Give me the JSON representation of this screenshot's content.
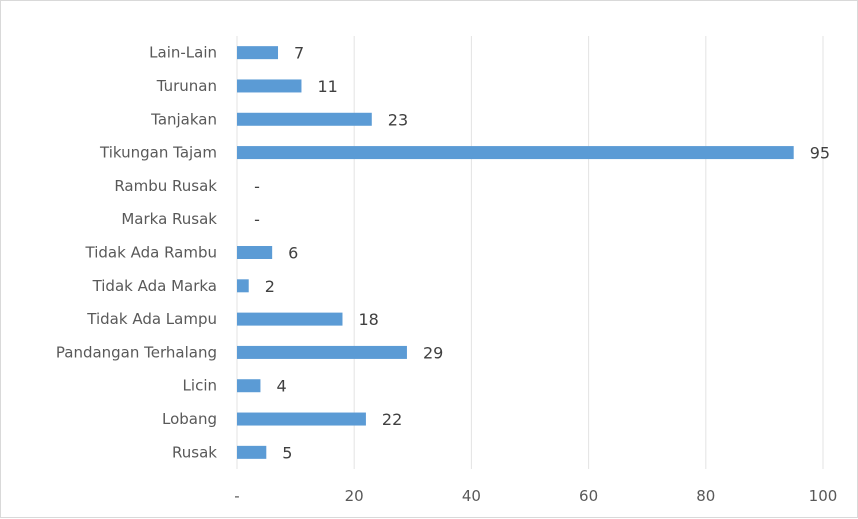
{
  "chart_data": {
    "type": "bar",
    "orientation": "horizontal",
    "categories": [
      "Lain-Lain",
      "Turunan",
      "Tanjakan",
      "Tikungan Tajam",
      "Rambu Rusak",
      "Marka Rusak",
      "Tidak Ada Rambu",
      "Tidak Ada Marka",
      "Tidak Ada Lampu",
      "Pandangan Terhalang",
      "Licin",
      "Lobang",
      "Rusak"
    ],
    "values": [
      7,
      11,
      23,
      95,
      0,
      0,
      6,
      2,
      18,
      29,
      4,
      22,
      5
    ],
    "data_labels": [
      "7",
      "11",
      "23",
      "95",
      "-",
      "-",
      "6",
      "2",
      "18",
      "29",
      "4",
      "22",
      "5"
    ],
    "x_ticks": [
      "-",
      "20",
      "40",
      "60",
      "80",
      "100"
    ],
    "xlim": [
      0,
      100
    ],
    "title": "",
    "xlabel": "",
    "ylabel": "",
    "grid": true,
    "legend": "none",
    "bar_color": "#5b9bd5"
  }
}
